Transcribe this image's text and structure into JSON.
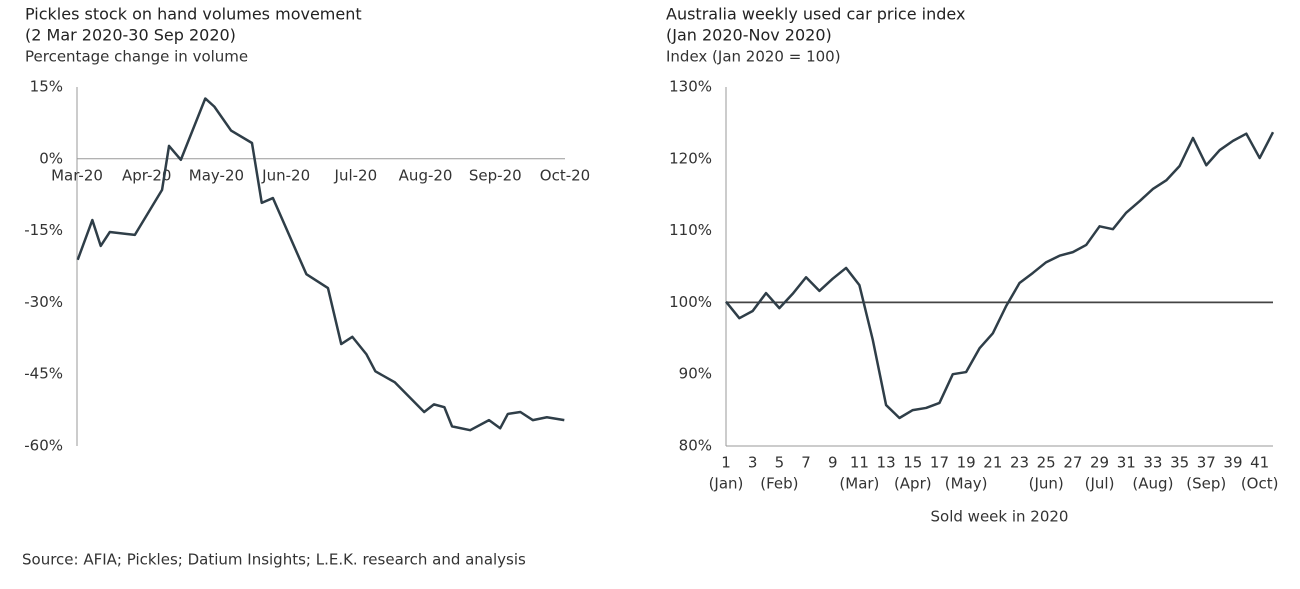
{
  "chart_data": [
    {
      "type": "line",
      "title": "Pickles stock on hand volumes movement",
      "subtitle": "(2 Mar 2020-30 Sep 2020)",
      "y_label": "Percentage change in volume",
      "x": [
        0.01,
        0.22,
        0.34,
        0.47,
        0.83,
        1.22,
        1.32,
        1.49,
        1.84,
        1.97,
        2.21,
        2.51,
        2.65,
        2.81,
        3.29,
        3.6,
        3.79,
        3.95,
        4.15,
        4.28,
        4.56,
        4.98,
        5.12,
        5.27,
        5.38,
        5.64,
        5.91,
        6.07,
        6.18,
        6.36,
        6.54,
        6.74,
        6.99
      ],
      "series": [
        {
          "color": "#2f3e48",
          "values": [
            -21.1,
            -12.8,
            -18.2,
            -15.3,
            -15.9,
            -6.5,
            2.7,
            -0.2,
            12.6,
            10.9,
            5.9,
            3.3,
            -9.2,
            -8.2,
            -24.1,
            -27.0,
            -38.7,
            -37.2,
            -40.8,
            -44.4,
            -46.7,
            -52.9,
            -51.3,
            -51.9,
            -55.9,
            -56.7,
            -54.6,
            -56.3,
            -53.3,
            -52.9,
            -54.6,
            -54.0,
            -54.6
          ]
        }
      ],
      "xlim": [
        0,
        7
      ],
      "xticks": [
        {
          "value": 0,
          "label": "Mar-20"
        },
        {
          "value": 1,
          "label": "Apr-20"
        },
        {
          "value": 2,
          "label": "May-20"
        },
        {
          "value": 3,
          "label": "Jun-20"
        },
        {
          "value": 4,
          "label": "Jul-20"
        },
        {
          "value": 5,
          "label": "Aug-20"
        },
        {
          "value": 6,
          "label": "Sep-20"
        },
        {
          "value": 7,
          "label": "Oct-20"
        }
      ],
      "ylim": [
        -60,
        15
      ],
      "yticks": [
        {
          "value": 15,
          "label": "15%"
        },
        {
          "value": 0,
          "label": "0%"
        },
        {
          "value": -15,
          "label": "-15%"
        },
        {
          "value": -30,
          "label": "-30%"
        },
        {
          "value": -45,
          "label": "-45%"
        },
        {
          "value": -60,
          "label": "-60%"
        }
      ],
      "baseline": 0,
      "grid": false
    },
    {
      "type": "line",
      "title": "Australia weekly used car price index",
      "subtitle": "(Jan 2020-Nov 2020)",
      "y_label": "Index (Jan 2020 = 100)",
      "x_label": "Sold week in 2020",
      "x": [
        1,
        2,
        3,
        4,
        5,
        6,
        7,
        8,
        9,
        10,
        11,
        12,
        13,
        14,
        15,
        16,
        17,
        18,
        19,
        20,
        21,
        22,
        23,
        24,
        25,
        26,
        27,
        28,
        29,
        30,
        31,
        32,
        33,
        34,
        35,
        36,
        37,
        38,
        39,
        40,
        41,
        42
      ],
      "series": [
        {
          "color": "#2f3e48",
          "values": [
            100.1,
            97.8,
            98.8,
            101.3,
            99.2,
            101.2,
            103.5,
            101.6,
            103.3,
            104.8,
            102.4,
            94.8,
            85.7,
            83.9,
            85.0,
            85.3,
            86.0,
            90.0,
            90.3,
            93.6,
            95.7,
            99.5,
            102.7,
            104.1,
            105.6,
            106.5,
            107.0,
            108.0,
            110.6,
            110.2,
            112.5,
            114.1,
            115.8,
            117.0,
            119.0,
            122.9,
            119.1,
            121.2,
            122.5,
            123.5,
            120.1,
            123.7
          ]
        }
      ],
      "xlim": [
        1,
        42
      ],
      "xticks": [
        1,
        3,
        5,
        7,
        9,
        11,
        13,
        15,
        17,
        19,
        21,
        23,
        25,
        27,
        29,
        31,
        33,
        35,
        37,
        39,
        41
      ],
      "month_labels": [
        {
          "x": 1,
          "label": "(Jan)"
        },
        {
          "x": 5,
          "label": "(Feb)"
        },
        {
          "x": 11,
          "label": "(Mar)"
        },
        {
          "x": 15,
          "label": "(Apr)"
        },
        {
          "x": 19,
          "label": "(May)"
        },
        {
          "x": 25,
          "label": "(Jun)"
        },
        {
          "x": 29,
          "label": "(Jul)"
        },
        {
          "x": 33,
          "label": "(Aug)"
        },
        {
          "x": 37,
          "label": "(Sep)"
        },
        {
          "x": 41,
          "label": "(Oct)"
        }
      ],
      "ylim": [
        80,
        130
      ],
      "yticks": [
        {
          "value": 130,
          "label": "130%"
        },
        {
          "value": 120,
          "label": "120%"
        },
        {
          "value": 110,
          "label": "110%"
        },
        {
          "value": 100,
          "label": "100%"
        },
        {
          "value": 90,
          "label": "90%"
        },
        {
          "value": 80,
          "label": "80%"
        }
      ],
      "baseline": 100,
      "grid": false
    }
  ],
  "source": "Source: AFIA; Pickles; Datium Insights; L.E.K. research and analysis"
}
